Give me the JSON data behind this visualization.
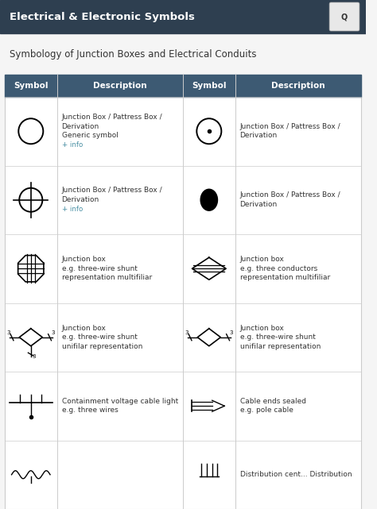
{
  "title_bar_text": "Electrical & Electronic Symbols",
  "title_bar_color": "#2e3f50",
  "title_bar_text_color": "#ffffff",
  "subtitle_text": "Symbology of Junction Boxes and Electrical Conduits",
  "subtitle_color": "#333333",
  "bg_color": "#f5f5f5",
  "table_bg": "#ffffff",
  "header_bg": "#3d5a73",
  "header_text_color": "#ffffff",
  "border_color": "#cccccc",
  "desc_color": "#333333",
  "info_color": "#4a90a4",
  "rows": [
    {
      "left_desc": [
        "Junction Box / Pattress Box /",
        "Derivation",
        "Generic symbol"
      ],
      "left_info": true,
      "right_desc": [
        "Junction Box / Pattress Box /",
        "Derivation"
      ],
      "right_info": false
    },
    {
      "left_desc": [
        "Junction Box / Pattress Box /",
        "Derivation"
      ],
      "left_info": true,
      "right_desc": [
        "Junction Box / Pattress Box /",
        "Derivation"
      ],
      "right_info": false
    },
    {
      "left_desc": [
        "Junction box",
        "e.g. three-wire shunt",
        "representation multifiliar"
      ],
      "left_info": false,
      "right_desc": [
        "Junction box",
        "e.g. three conductors",
        "representation multifiliar"
      ],
      "right_info": false
    },
    {
      "left_desc": [
        "Junction box",
        "e.g. three-wire shunt",
        "unifilar representation"
      ],
      "left_info": false,
      "right_desc": [
        "Junction box",
        "e.g. three-wire shunt",
        "unifilar representation"
      ],
      "right_info": false
    },
    {
      "left_desc": [
        "Containment voltage cable light",
        "e.g. three wires"
      ],
      "left_info": false,
      "right_desc": [
        "Cable ends sealed",
        "e.g. pole cable"
      ],
      "right_info": false
    },
    {
      "left_desc": [
        ""
      ],
      "left_info": false,
      "right_desc": [
        "Distribution cent... Distribution"
      ],
      "right_info": false
    }
  ]
}
